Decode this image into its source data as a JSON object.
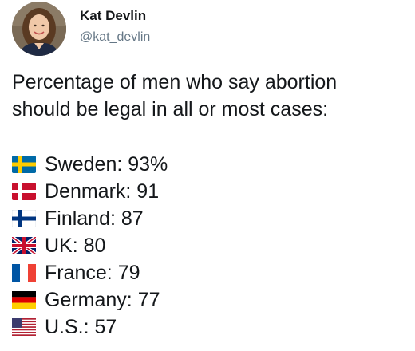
{
  "author": {
    "display_name": "Kat Devlin",
    "handle": "@kat_devlin"
  },
  "tweet": {
    "intro_line1": "Percentage of men who say abortion",
    "intro_line2": "should be legal in all or most cases:",
    "rows": [
      {
        "country": "Sweden",
        "value_text": "Sweden: 93%",
        "flag_icon": "sweden-flag-icon"
      },
      {
        "country": "Denmark",
        "value_text": "Denmark: 91",
        "flag_icon": "denmark-flag-icon"
      },
      {
        "country": "Finland",
        "value_text": "Finland: 87",
        "flag_icon": "finland-flag-icon"
      },
      {
        "country": "UK",
        "value_text": "UK: 80",
        "flag_icon": "uk-flag-icon"
      },
      {
        "country": "France",
        "value_text": "France: 79",
        "flag_icon": "france-flag-icon"
      },
      {
        "country": "Germany",
        "value_text": "Germany: 77",
        "flag_icon": "germany-flag-icon"
      },
      {
        "country": "U.S.",
        "value_text": "U.S.: 57",
        "flag_icon": "us-flag-icon"
      }
    ]
  },
  "colors": {
    "text": "#14171a",
    "handle": "#657786",
    "link": "#1da1f2"
  }
}
